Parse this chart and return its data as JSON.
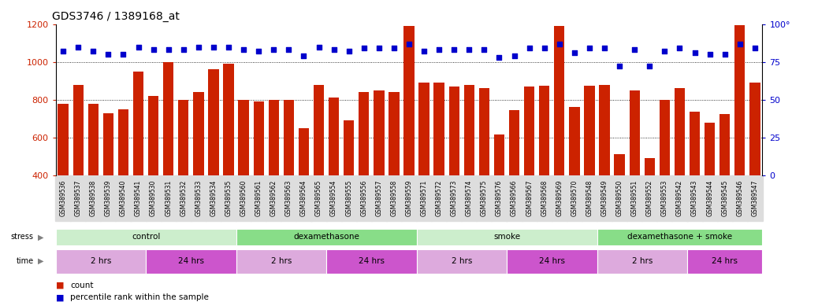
{
  "title": "GDS3746 / 1389168_at",
  "samples": [
    "GSM389536",
    "GSM389537",
    "GSM389538",
    "GSM389539",
    "GSM389540",
    "GSM389541",
    "GSM389530",
    "GSM389531",
    "GSM389532",
    "GSM389533",
    "GSM389534",
    "GSM389535",
    "GSM389560",
    "GSM389561",
    "GSM389562",
    "GSM389563",
    "GSM389564",
    "GSM389565",
    "GSM389554",
    "GSM389555",
    "GSM389556",
    "GSM389557",
    "GSM389558",
    "GSM389559",
    "GSM389571",
    "GSM389572",
    "GSM389573",
    "GSM389574",
    "GSM389575",
    "GSM389576",
    "GSM389566",
    "GSM389567",
    "GSM389568",
    "GSM389569",
    "GSM389570",
    "GSM389548",
    "GSM389549",
    "GSM389550",
    "GSM389551",
    "GSM389552",
    "GSM389553",
    "GSM389542",
    "GSM389543",
    "GSM389544",
    "GSM389545",
    "GSM389546",
    "GSM389547"
  ],
  "counts": [
    780,
    880,
    780,
    730,
    750,
    950,
    820,
    1000,
    800,
    840,
    960,
    990,
    800,
    790,
    800,
    800,
    650,
    880,
    810,
    690,
    840,
    850,
    840,
    1190,
    890,
    890,
    870,
    880,
    860,
    615,
    745,
    870,
    875,
    1190,
    760,
    875,
    880,
    510,
    850,
    490,
    800,
    860,
    735,
    680,
    725,
    1195,
    890
  ],
  "percentiles": [
    82,
    85,
    82,
    80,
    80,
    85,
    83,
    83,
    83,
    85,
    85,
    85,
    83,
    82,
    83,
    83,
    79,
    85,
    83,
    82,
    84,
    84,
    84,
    87,
    82,
    83,
    83,
    83,
    83,
    78,
    79,
    84,
    84,
    87,
    81,
    84,
    84,
    72,
    83,
    72,
    82,
    84,
    81,
    80,
    80,
    87,
    84
  ],
  "stress_groups": [
    {
      "label": "control",
      "start": 0,
      "end": 11,
      "color": "#cceecc"
    },
    {
      "label": "dexamethasone",
      "start": 12,
      "end": 23,
      "color": "#88dd88"
    },
    {
      "label": "smoke",
      "start": 24,
      "end": 35,
      "color": "#cceecc"
    },
    {
      "label": "dexamethasone + smoke",
      "start": 36,
      "end": 46,
      "color": "#88dd88"
    }
  ],
  "time_groups": [
    {
      "label": "2 hrs",
      "start": 0,
      "end": 5,
      "color": "#ddaadd"
    },
    {
      "label": "24 hrs",
      "start": 6,
      "end": 11,
      "color": "#cc55cc"
    },
    {
      "label": "2 hrs",
      "start": 12,
      "end": 17,
      "color": "#ddaadd"
    },
    {
      "label": "24 hrs",
      "start": 18,
      "end": 23,
      "color": "#cc55cc"
    },
    {
      "label": "2 hrs",
      "start": 24,
      "end": 29,
      "color": "#ddaadd"
    },
    {
      "label": "24 hrs",
      "start": 30,
      "end": 35,
      "color": "#cc55cc"
    },
    {
      "label": "2 hrs",
      "start": 36,
      "end": 41,
      "color": "#ddaadd"
    },
    {
      "label": "24 hrs",
      "start": 42,
      "end": 46,
      "color": "#cc55cc"
    }
  ],
  "ylim_left": [
    400,
    1200
  ],
  "ylim_right": [
    0,
    100
  ],
  "yticks_left": [
    400,
    600,
    800,
    1000,
    1200
  ],
  "yticks_right": [
    0,
    25,
    50,
    75,
    100
  ],
  "bar_color": "#cc2200",
  "dot_color": "#0000cc",
  "bg_color": "#ffffff",
  "title_fontsize": 10,
  "axis_label_color_left": "#cc2200",
  "axis_label_color_right": "#0000cc",
  "xtick_bg": "#dddddd"
}
